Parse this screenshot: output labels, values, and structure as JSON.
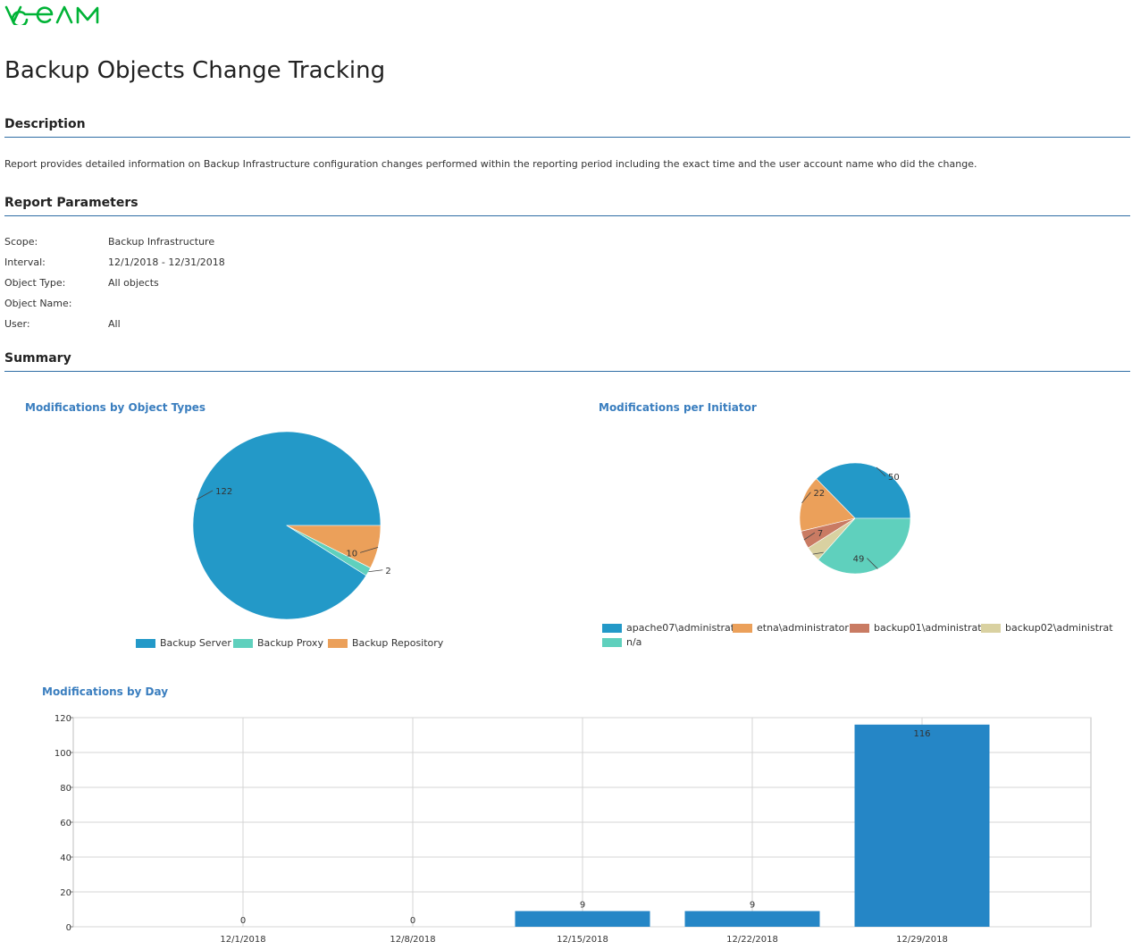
{
  "brand": {
    "logo_text": "VEEAM",
    "color": "#00b336"
  },
  "page_title": "Backup Objects Change Tracking",
  "description": {
    "heading": "Description",
    "text": "Report provides detailed information on Backup Infrastructure configuration changes performed within the reporting period including the exact time and the user account name who did the change."
  },
  "parameters": {
    "heading": "Report Parameters",
    "rows": [
      {
        "label": "Scope:",
        "value": "Backup Infrastructure"
      },
      {
        "label": "Interval:",
        "value": "12/1/2018 - 12/31/2018"
      },
      {
        "label": "Object Type:",
        "value": "All objects"
      },
      {
        "label": "Object Name:",
        "value": ""
      },
      {
        "label": "User:",
        "value": "All"
      }
    ]
  },
  "summary": {
    "heading": "Summary"
  },
  "chart_data": [
    {
      "type": "pie",
      "title": "Modifications by Object Types",
      "slices": [
        {
          "label": "Backup Server",
          "value": 122,
          "color": "#2399c8"
        },
        {
          "label": "Backup Proxy",
          "value": 2,
          "color": "#5fd0bd"
        },
        {
          "label": "Backup Repository",
          "value": 10,
          "color": "#eba05a"
        }
      ],
      "legend_position": "bottom"
    },
    {
      "type": "pie",
      "title": "Modifications per Initiator",
      "slices": [
        {
          "label": "apache07\\administrat",
          "value": 50,
          "color": "#2399c8"
        },
        {
          "label": "etna\\administrator",
          "value": 22,
          "color": "#eba05a"
        },
        {
          "label": "backup01\\administrat",
          "value": 7,
          "color": "#c97b63"
        },
        {
          "label": "backup02\\administrat",
          "value": 6,
          "color": "#d9d1a1"
        },
        {
          "label": "n/a",
          "value": 49,
          "color": "#5fd0bd"
        }
      ],
      "legend_position": "bottom"
    },
    {
      "type": "bar",
      "title": "Modifications by Day",
      "categories": [
        "12/1/2018",
        "12/8/2018",
        "12/15/2018",
        "12/22/2018",
        "12/29/2018"
      ],
      "values": [
        0,
        0,
        9,
        9,
        116
      ],
      "ylim": [
        0,
        120
      ],
      "yticks": [
        0,
        20,
        40,
        60,
        80,
        100,
        120
      ],
      "grid": true,
      "bar_color": "#2586c6"
    }
  ]
}
